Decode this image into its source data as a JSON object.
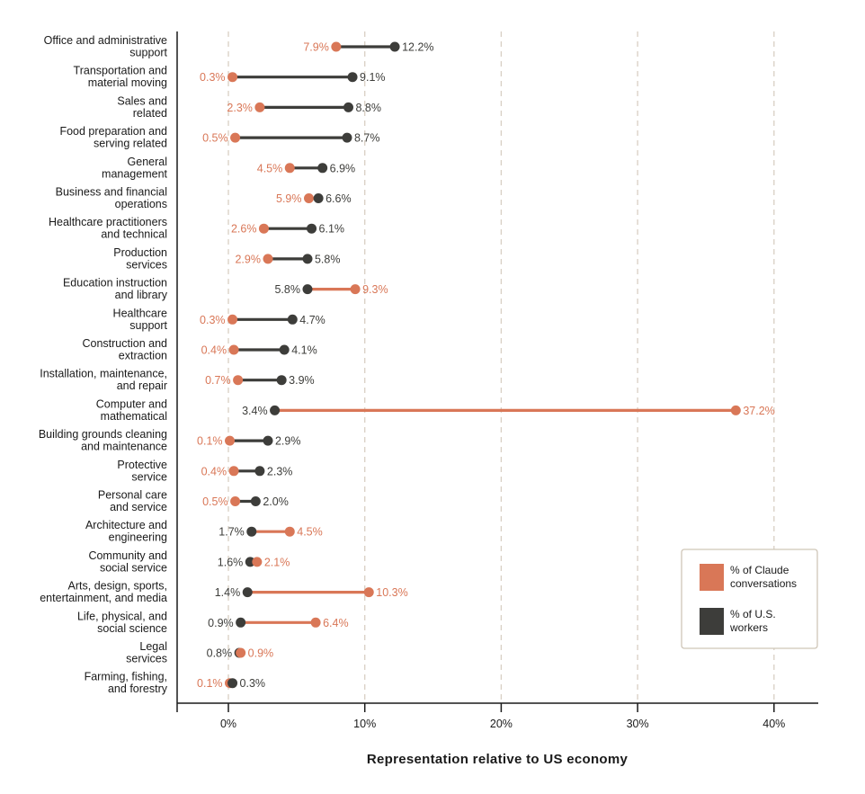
{
  "chart_data": {
    "type": "dumbbell",
    "xlabel": "Representation relative to US economy",
    "xlim": [
      -3.8,
      43
    ],
    "x_ticks": [
      0,
      10,
      20,
      30,
      40
    ],
    "x_tick_labels": [
      "0%",
      "10%",
      "20%",
      "30%",
      "40%"
    ],
    "grid": "vertical dashed",
    "legend_position": "bottom-right",
    "colors": {
      "claude": "#d97757",
      "workers": "#3d3d3a",
      "grid": "#d8cfc4"
    },
    "series": [
      {
        "name": "% of Claude conversations",
        "key": "claude"
      },
      {
        "name": "% of U.S. workers",
        "key": "workers"
      }
    ],
    "categories": [
      {
        "label": [
          "Office and administrative",
          "support"
        ],
        "claude": 7.9,
        "workers": 12.2,
        "claude_text": "7.9%",
        "workers_text": "12.2%"
      },
      {
        "label": [
          "Transportation and",
          "material moving"
        ],
        "claude": 0.3,
        "workers": 9.1,
        "claude_text": "0.3%",
        "workers_text": "9.1%"
      },
      {
        "label": [
          "Sales and",
          "related"
        ],
        "claude": 2.3,
        "workers": 8.8,
        "claude_text": "2.3%",
        "workers_text": "8.8%"
      },
      {
        "label": [
          "Food preparation and",
          "serving related"
        ],
        "claude": 0.5,
        "workers": 8.7,
        "claude_text": "0.5%",
        "workers_text": "8.7%"
      },
      {
        "label": [
          "General",
          "management"
        ],
        "claude": 4.5,
        "workers": 6.9,
        "claude_text": "4.5%",
        "workers_text": "6.9%"
      },
      {
        "label": [
          "Business and financial",
          "operations"
        ],
        "claude": 5.9,
        "workers": 6.6,
        "claude_text": "5.9%",
        "workers_text": "6.6%"
      },
      {
        "label": [
          "Healthcare practitioners",
          "and technical"
        ],
        "claude": 2.6,
        "workers": 6.1,
        "claude_text": "2.6%",
        "workers_text": "6.1%"
      },
      {
        "label": [
          "Production",
          "services"
        ],
        "claude": 2.9,
        "workers": 5.8,
        "claude_text": "2.9%",
        "workers_text": "5.8%"
      },
      {
        "label": [
          "Education instruction",
          "and library"
        ],
        "claude": 9.3,
        "workers": 5.8,
        "claude_text": "9.3%",
        "workers_text": "5.8%"
      },
      {
        "label": [
          "Healthcare",
          "support"
        ],
        "claude": 0.3,
        "workers": 4.7,
        "claude_text": "0.3%",
        "workers_text": "4.7%"
      },
      {
        "label": [
          "Construction and",
          "extraction"
        ],
        "claude": 0.4,
        "workers": 4.1,
        "claude_text": "0.4%",
        "workers_text": "4.1%"
      },
      {
        "label": [
          "Installation, maintenance,",
          "and repair"
        ],
        "claude": 0.7,
        "workers": 3.9,
        "claude_text": "0.7%",
        "workers_text": "3.9%"
      },
      {
        "label": [
          "Computer and",
          "mathematical"
        ],
        "claude": 37.2,
        "workers": 3.4,
        "claude_text": "37.2%",
        "workers_text": "3.4%"
      },
      {
        "label": [
          "Building grounds cleaning",
          "and maintenance"
        ],
        "claude": 0.1,
        "workers": 2.9,
        "claude_text": "0.1%",
        "workers_text": "2.9%"
      },
      {
        "label": [
          "Protective",
          "service"
        ],
        "claude": 0.4,
        "workers": 2.3,
        "claude_text": "0.4%",
        "workers_text": "2.3%"
      },
      {
        "label": [
          "Personal care",
          "and service"
        ],
        "claude": 0.5,
        "workers": 2.0,
        "claude_text": "0.5%",
        "workers_text": "2.0%"
      },
      {
        "label": [
          "Architecture and",
          "engineering"
        ],
        "claude": 4.5,
        "workers": 1.7,
        "claude_text": "4.5%",
        "workers_text": "1.7%"
      },
      {
        "label": [
          "Community and",
          "social service"
        ],
        "claude": 2.1,
        "workers": 1.6,
        "claude_text": "2.1%",
        "workers_text": "1.6%"
      },
      {
        "label": [
          "Arts, design, sports,",
          "entertainment, and media"
        ],
        "claude": 10.3,
        "workers": 1.4,
        "claude_text": "10.3%",
        "workers_text": "1.4%"
      },
      {
        "label": [
          "Life, physical, and",
          "social science"
        ],
        "claude": 6.4,
        "workers": 0.9,
        "claude_text": "6.4%",
        "workers_text": "0.9%"
      },
      {
        "label": [
          "Legal",
          "services"
        ],
        "claude": 0.9,
        "workers": 0.8,
        "claude_text": "0.9%",
        "workers_text": "0.8%"
      },
      {
        "label": [
          "Farming, fishing,",
          "and forestry"
        ],
        "claude": 0.1,
        "workers": 0.3,
        "claude_text": "0.1%",
        "workers_text": "0.3%"
      }
    ],
    "legend": {
      "claude_lines": [
        "% of Claude",
        "conversations"
      ],
      "workers_lines": [
        "% of U.S.",
        "workers"
      ]
    }
  }
}
